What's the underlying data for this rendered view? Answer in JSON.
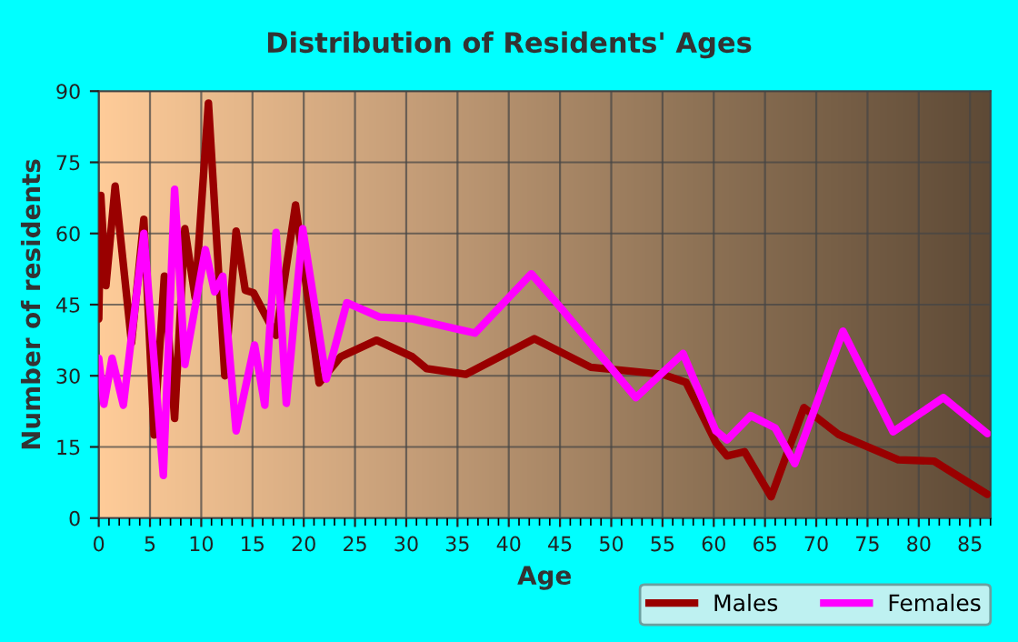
{
  "chart_data": {
    "type": "line",
    "title": "Distribution of Residents' Ages",
    "xlabel": "Age",
    "ylabel": "Number of residents",
    "xlim": [
      0,
      87
    ],
    "xticks": [
      0,
      5,
      10,
      15,
      20,
      25,
      30,
      35,
      40,
      45,
      50,
      55,
      60,
      65,
      70,
      75,
      80,
      85
    ],
    "ylim": [
      0,
      90
    ],
    "yticks": [
      0,
      15,
      30,
      45,
      60,
      75,
      90
    ],
    "grid": true,
    "legend": "bottom right",
    "marker": "none",
    "line_style": "solid",
    "series": [
      {
        "name": "Males",
        "color": "#990000",
        "x": [
          0,
          0.2,
          0.7,
          1.6,
          3.2,
          4.4,
          5.4,
          6.4,
          7.4,
          8.4,
          9.4,
          10.7,
          12.3,
          13.4,
          14.3,
          15.1,
          17.3,
          19.2,
          21.5,
          23.6,
          27.1,
          30.6,
          32,
          35.8,
          42.5,
          48,
          55,
          57.3,
          60.2,
          61.3,
          63,
          65.6,
          68.8,
          72.2,
          78,
          81.5,
          86.7
        ],
        "values": [
          42,
          68,
          49,
          70,
          37,
          63,
          17.5,
          51,
          21,
          61,
          46.5,
          87.5,
          30,
          60.5,
          48,
          47.5,
          38.5,
          66,
          28.5,
          34,
          37.5,
          34,
          31.5,
          30.3,
          37.8,
          31.8,
          30.3,
          28.6,
          16,
          13.1,
          14,
          4.5,
          23.3,
          17.6,
          12.3,
          12,
          5
        ]
      },
      {
        "name": "Females",
        "color": "#ff00ff",
        "x": [
          0,
          0.5,
          1.3,
          2.4,
          4.4,
          6.3,
          7.4,
          8.4,
          10.4,
          11.3,
          12.1,
          13.4,
          15.2,
          16.2,
          17.3,
          18.3,
          19.9,
          22.2,
          24.2,
          27.4,
          30.6,
          36.7,
          42.2,
          45.2,
          52.4,
          57,
          60.2,
          61.3,
          63.6,
          66,
          67.9,
          72.6,
          77.5,
          82.4,
          86.7
        ],
        "values": [
          33.7,
          24,
          33.7,
          23.8,
          60,
          9,
          69.3,
          32.4,
          56.6,
          47.7,
          51,
          18.4,
          36.5,
          23.8,
          60.2,
          24.2,
          61,
          29.3,
          45.4,
          42.4,
          42,
          39,
          51.5,
          44,
          25.4,
          34.7,
          18.4,
          16.5,
          21.6,
          19,
          11.5,
          39.4,
          18.2,
          25.4,
          17.8
        ]
      }
    ]
  }
}
